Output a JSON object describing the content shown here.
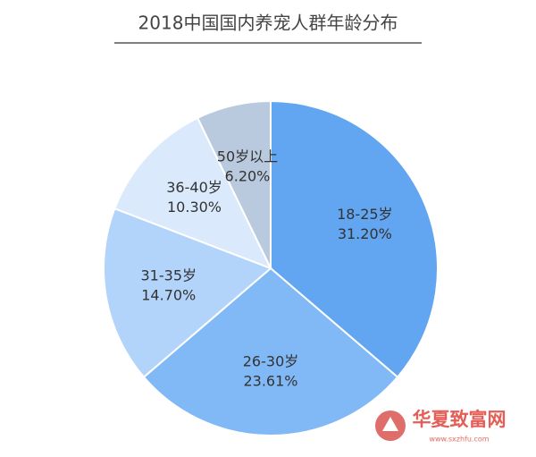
{
  "chart_data": {
    "type": "pie",
    "title": "2018中国国内养宠人群年龄分布",
    "categories": [
      "18-25岁",
      "26-30岁",
      "31-35岁",
      "36-40岁",
      "50岁以上"
    ],
    "values": [
      31.2,
      23.61,
      14.7,
      10.3,
      6.2
    ],
    "value_labels": [
      "31.20%",
      "23.61%",
      "14.70%",
      "10.30%",
      "6.20%"
    ],
    "colors": [
      "#62a5f0",
      "#80b9f6",
      "#b2d3fa",
      "#daeafc",
      "#b9c9de"
    ]
  },
  "watermark": {
    "name": "华夏致富网",
    "url": "www.sxzhfu.com"
  }
}
